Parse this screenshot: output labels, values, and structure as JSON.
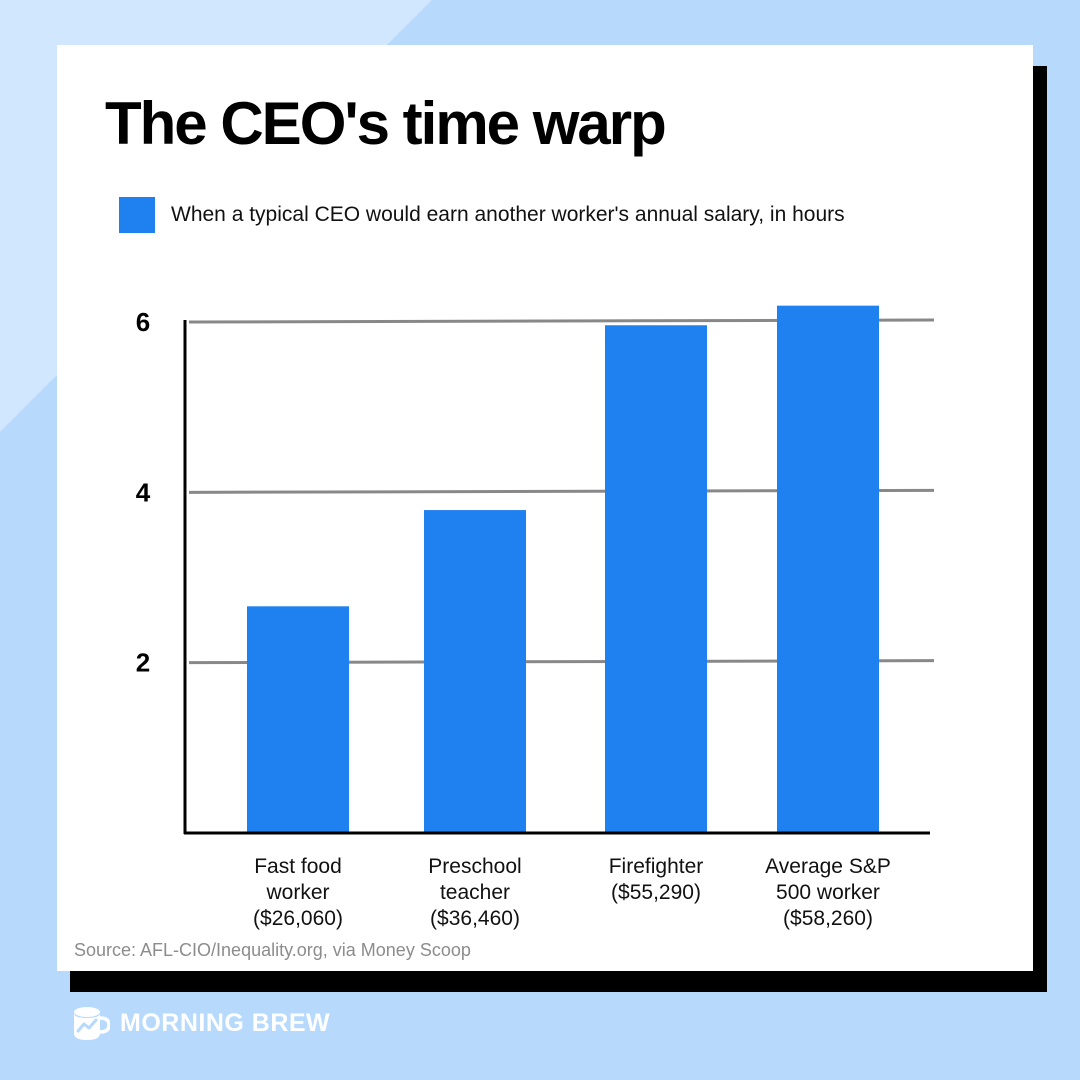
{
  "title": "The CEO's time warp",
  "legend": {
    "label": "When a typical CEO would earn another worker's annual salary, in hours",
    "color": "#1f80ef"
  },
  "source": "Source: AFL-CIO/Inequality.org, via Money Scoop",
  "brand": {
    "name": "MORNING BREW",
    "icon": "coffee-mug-logo-icon"
  },
  "colors": {
    "background": "#b7dafc",
    "bar": "#1f80ef",
    "grid": "#888888",
    "axis": "#000000"
  },
  "chart_data": {
    "type": "bar",
    "categories": [
      [
        "Fast food",
        "worker",
        "($26,060)"
      ],
      [
        "Preschool",
        "teacher",
        "($36,460)"
      ],
      [
        "Firefighter",
        "($55,290)"
      ],
      [
        "Average S&P",
        "500 worker",
        "($58,260)"
      ]
    ],
    "series": [
      {
        "values": [
          2.65,
          3.78,
          5.95,
          6.18
        ]
      }
    ],
    "yticks": [
      "2",
      "4",
      "6"
    ],
    "ylim": [
      0,
      6
    ],
    "grid": true
  }
}
